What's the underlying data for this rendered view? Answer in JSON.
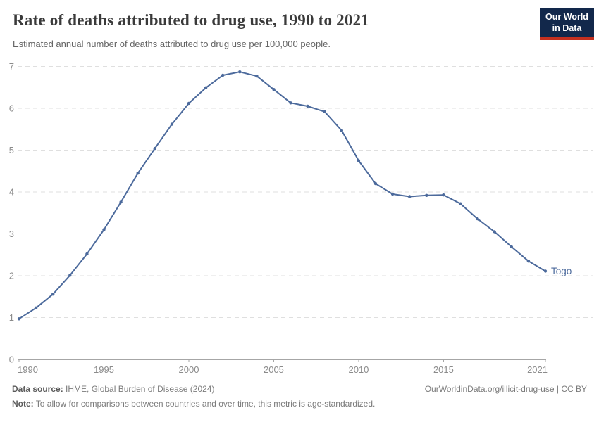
{
  "header": {
    "title": "Rate of deaths attributed to drug use, 1990 to 2021",
    "subtitle": "Estimated annual number of deaths attributed to drug use per 100,000 people."
  },
  "logo": {
    "line1": "Our World",
    "line2": "in Data"
  },
  "chart_data": {
    "type": "line",
    "title": "Rate of deaths attributed to drug use, 1990 to 2021",
    "x": [
      1990,
      1991,
      1992,
      1993,
      1994,
      1995,
      1996,
      1997,
      1998,
      1999,
      2000,
      2001,
      2002,
      2003,
      2004,
      2005,
      2006,
      2007,
      2008,
      2009,
      2010,
      2011,
      2012,
      2013,
      2014,
      2015,
      2016,
      2017,
      2018,
      2019,
      2020,
      2021
    ],
    "series": [
      {
        "name": "Togo",
        "values": [
          0.97,
          1.23,
          1.56,
          2.01,
          2.52,
          3.1,
          3.76,
          4.45,
          5.04,
          5.62,
          6.12,
          6.49,
          6.79,
          6.87,
          6.77,
          6.45,
          6.13,
          6.05,
          5.92,
          5.47,
          4.75,
          4.2,
          3.95,
          3.89,
          3.92,
          3.93,
          3.72,
          3.36,
          3.05,
          2.69,
          2.35,
          2.11
        ]
      }
    ],
    "xlabel": "",
    "ylabel": "",
    "xlim": [
      1990,
      2021
    ],
    "ylim": [
      0,
      7
    ],
    "y_ticks": [
      0,
      1,
      2,
      3,
      4,
      5,
      6,
      7
    ],
    "x_ticks": [
      1990,
      1995,
      2000,
      2005,
      2010,
      2015,
      2021
    ],
    "grid": "horizontal-dashed",
    "legend_position": "end-of-line-label"
  },
  "colors": {
    "line": "#4C6A9C",
    "grid": "#DFDFDF",
    "axis": "#A6A6A6",
    "tick_label": "#8B8B8B",
    "title": "#3A3A3A",
    "subtitle": "#646464",
    "footer": "#7B7B7B",
    "logo_bg": "#12284B",
    "logo_accent": "#C5301F"
  },
  "footer": {
    "datasource_label": "Data source:",
    "datasource_text": " IHME, Global Burden of Disease (2024)",
    "url_text": "OurWorldinData.org/illicit-drug-use | CC BY",
    "note_label": "Note:",
    "note_text": " To allow for comparisons between countries and over time, this metric is age-standardized."
  }
}
